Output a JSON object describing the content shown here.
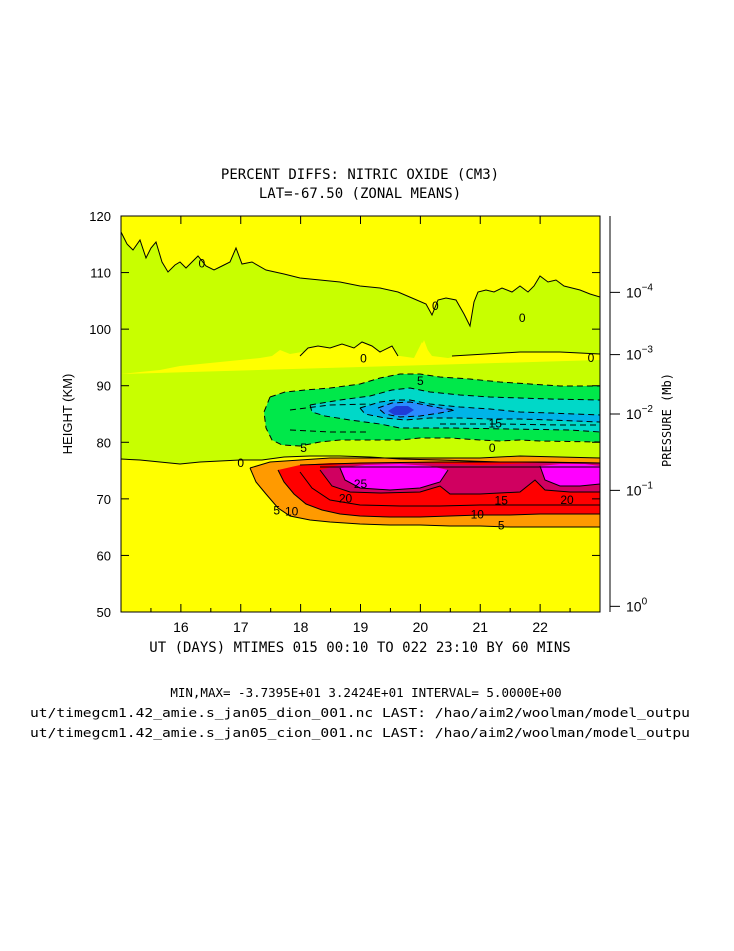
{
  "chart_data": {
    "type": "contour",
    "title": "PERCENT DIFFS: NITRIC OXIDE (CM3)",
    "subtitle": "LAT=-67.50 (ZONAL MEANS)",
    "ylabel": "HEIGHT (KM)",
    "y2label": "PRESSURE (Mb)",
    "xlabel": "UT (DAYS) MTIMES 015 00:10 TO 022 23:10 BY   60 MINS",
    "xlim": [
      15.0,
      23.0
    ],
    "ylim": [
      50,
      120
    ],
    "x_ticks": [
      16,
      17,
      18,
      19,
      20,
      21,
      22
    ],
    "x_tick_labels": [
      "16",
      "17",
      "18",
      "19",
      "20",
      "21",
      "22"
    ],
    "y_ticks": [
      50,
      60,
      70,
      80,
      90,
      100,
      110,
      120
    ],
    "y_tick_labels": [
      "50",
      "60",
      "70",
      "80",
      "90",
      "100",
      "110",
      "120"
    ],
    "y2_ticks": [
      {
        "height": 106.5,
        "base": "10",
        "exp": "−4"
      },
      {
        "height": 95.5,
        "base": "10",
        "exp": "−3"
      },
      {
        "height": 85.0,
        "base": "10",
        "exp": "−2"
      },
      {
        "height": 71.5,
        "base": "10",
        "exp": "−1"
      },
      {
        "height": 51.0,
        "base": "10",
        "exp": "0"
      }
    ],
    "contour_interval": 5,
    "min": -37.395,
    "max": 32.424,
    "colors": {
      "background": "#ffff00",
      "neg_0_5": "#c8ff00",
      "neg_5_10": "#00e84a",
      "neg_10_15": "#00d8c8",
      "neg_15_20": "#00b4e8",
      "neg_20_25": "#2a8cff",
      "neg_min": "#1e3cd8",
      "pos_5_10": "#ff9a00",
      "pos_10_20": "#ff0000",
      "pos_20_25": "#d00060",
      "pos_25_plus": "#ff00ff"
    },
    "contour_labels": [
      {
        "text": "0",
        "x": 16.35,
        "y": 111.6
      },
      {
        "text": "0",
        "x": 17.0,
        "y": 76.3
      },
      {
        "text": "0",
        "x": 20.25,
        "y": 104.1
      },
      {
        "text": "0",
        "x": 19.05,
        "y": 94.8
      },
      {
        "text": "0",
        "x": 21.7,
        "y": 102.0
      },
      {
        "text": "0",
        "x": 22.85,
        "y": 94.9
      },
      {
        "text": "0",
        "x": 21.2,
        "y": 79.0
      },
      {
        "text": "5",
        "x": 18.05,
        "y": 79.0
      },
      {
        "text": "5",
        "x": 20.0,
        "y": 90.8
      },
      {
        "text": "15",
        "x": 21.25,
        "y": 83.3
      },
      {
        "text": "5",
        "x": 17.6,
        "y": 67.9
      },
      {
        "text": "10",
        "x": 17.85,
        "y": 67.8
      },
      {
        "text": "20",
        "x": 18.75,
        "y": 70.1
      },
      {
        "text": "25",
        "x": 19.0,
        "y": 72.6
      },
      {
        "text": "15",
        "x": 21.35,
        "y": 69.7
      },
      {
        "text": "10",
        "x": 20.95,
        "y": 67.2
      },
      {
        "text": "5",
        "x": 21.35,
        "y": 65.3
      },
      {
        "text": "20",
        "x": 22.45,
        "y": 69.8
      }
    ]
  },
  "footer": {
    "minmax": "MIN,MAX= -3.7395E+01  3.2424E+01 INTERVAL=  5.0000E+00",
    "file1": "ut/timegcm1.42_amie.s_jan05_dion_001.nc LAST: /hao/aim2/woolman/model_outpu",
    "file2": "ut/timegcm1.42_amie.s_jan05_cion_001.nc LAST: /hao/aim2/woolman/model_outpu"
  }
}
